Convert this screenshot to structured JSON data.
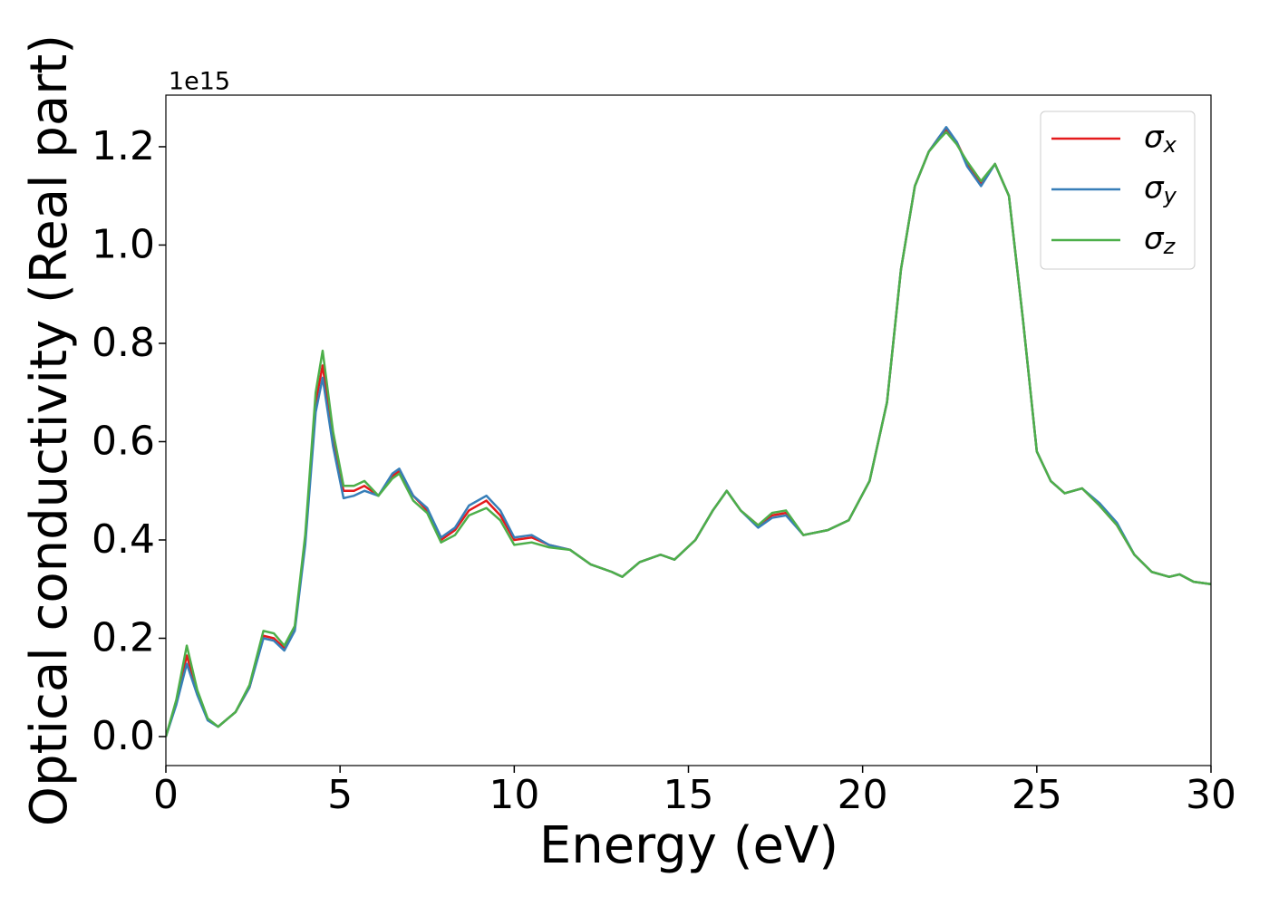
{
  "chart_data": {
    "type": "line",
    "x_label": "Energy (eV)",
    "y_label": "Optical conductivity (Real part)",
    "y_offset_label": "1e15",
    "xlim": [
      0,
      30
    ],
    "xticks": [
      0,
      5,
      10,
      15,
      20,
      25,
      30
    ],
    "ylim": [
      -0.059,
      1.305
    ],
    "yticks": [
      {
        "value": 0,
        "label": "0.0"
      },
      0.2,
      0.4,
      0.6,
      0.8,
      {
        "value": 1,
        "label": "1.0"
      },
      1.2
    ],
    "legend": "upper right",
    "x": [
      0,
      0.3,
      0.6,
      0.9,
      1.2,
      1.5,
      2.0,
      2.4,
      2.8,
      3.1,
      3.4,
      3.7,
      4.0,
      4.3,
      4.5,
      4.8,
      5.1,
      5.4,
      5.7,
      6.1,
      6.5,
      6.7,
      7.1,
      7.5,
      7.9,
      8.3,
      8.7,
      9.2,
      9.6,
      10.0,
      10.5,
      11.0,
      11.6,
      12.2,
      12.8,
      13.1,
      13.6,
      14.2,
      14.6,
      15.2,
      15.7,
      16.1,
      16.5,
      17.0,
      17.4,
      17.8,
      18.3,
      19.0,
      19.6,
      20.2,
      20.7,
      21.1,
      21.5,
      21.9,
      22.2,
      22.4,
      22.7,
      23.0,
      23.4,
      23.8,
      24.2,
      24.6,
      25.0,
      25.4,
      25.8,
      26.3,
      26.8,
      27.3,
      27.8,
      28.3,
      28.8,
      29.1,
      29.5,
      30.0
    ],
    "series": [
      {
        "name": "σx",
        "color": "#e41a1c",
        "values": [
          0,
          0.07,
          0.165,
          0.09,
          0.035,
          0.02,
          0.05,
          0.1,
          0.205,
          0.2,
          0.18,
          0.22,
          0.4,
          0.68,
          0.755,
          0.6,
          0.5,
          0.5,
          0.51,
          0.49,
          0.53,
          0.54,
          0.49,
          0.46,
          0.4,
          0.42,
          0.46,
          0.48,
          0.45,
          0.4,
          0.405,
          0.39,
          0.38,
          0.35,
          0.335,
          0.325,
          0.355,
          0.37,
          0.36,
          0.4,
          0.46,
          0.5,
          0.46,
          0.43,
          0.45,
          0.455,
          0.41,
          0.42,
          0.44,
          0.52,
          0.68,
          0.95,
          1.12,
          1.19,
          1.22,
          1.235,
          1.21,
          1.165,
          1.125,
          1.165,
          1.1,
          0.85,
          0.58,
          0.52,
          0.495,
          0.505,
          0.47,
          0.43,
          0.37,
          0.335,
          0.325,
          0.33,
          0.315,
          0.31
        ]
      },
      {
        "name": "σy",
        "color": "#377eb8",
        "values": [
          0,
          0.065,
          0.148,
          0.085,
          0.033,
          0.02,
          0.05,
          0.1,
          0.2,
          0.195,
          0.175,
          0.215,
          0.39,
          0.66,
          0.73,
          0.59,
          0.485,
          0.49,
          0.5,
          0.49,
          0.535,
          0.545,
          0.49,
          0.465,
          0.405,
          0.425,
          0.47,
          0.49,
          0.46,
          0.405,
          0.41,
          0.39,
          0.38,
          0.35,
          0.335,
          0.325,
          0.355,
          0.37,
          0.36,
          0.4,
          0.46,
          0.5,
          0.46,
          0.425,
          0.445,
          0.45,
          0.41,
          0.42,
          0.44,
          0.52,
          0.68,
          0.95,
          1.12,
          1.19,
          1.22,
          1.24,
          1.21,
          1.16,
          1.12,
          1.165,
          1.1,
          0.85,
          0.58,
          0.52,
          0.495,
          0.505,
          0.475,
          0.435,
          0.37,
          0.335,
          0.325,
          0.33,
          0.315,
          0.31
        ]
      },
      {
        "name": "σz",
        "color": "#4daf4a",
        "values": [
          0,
          0.075,
          0.185,
          0.095,
          0.037,
          0.02,
          0.05,
          0.105,
          0.215,
          0.21,
          0.185,
          0.225,
          0.41,
          0.7,
          0.785,
          0.62,
          0.51,
          0.51,
          0.52,
          0.49,
          0.525,
          0.535,
          0.48,
          0.455,
          0.395,
          0.41,
          0.45,
          0.465,
          0.44,
          0.39,
          0.395,
          0.385,
          0.38,
          0.35,
          0.335,
          0.325,
          0.355,
          0.37,
          0.36,
          0.4,
          0.46,
          0.5,
          0.46,
          0.43,
          0.455,
          0.46,
          0.41,
          0.42,
          0.44,
          0.52,
          0.68,
          0.95,
          1.12,
          1.19,
          1.215,
          1.23,
          1.205,
          1.17,
          1.13,
          1.165,
          1.1,
          0.85,
          0.58,
          0.52,
          0.495,
          0.505,
          0.47,
          0.43,
          0.37,
          0.335,
          0.325,
          0.33,
          0.315,
          0.31
        ]
      }
    ]
  }
}
